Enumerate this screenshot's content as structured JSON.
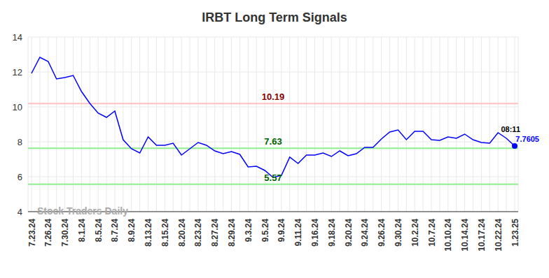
{
  "chart_data": {
    "type": "line",
    "title": "IRBT Long Term Signals",
    "categories": [
      "7.23.24",
      null,
      "7.26.24",
      null,
      "7.30.24",
      null,
      "8.1.24",
      null,
      "8.5.24",
      null,
      "8.7.24",
      null,
      "8.9.24",
      null,
      "8.13.24",
      null,
      "8.15.24",
      null,
      "8.20.24",
      null,
      "8.23.24",
      null,
      "8.27.24",
      null,
      "8.29.24",
      null,
      "9.3.24",
      null,
      "9.5.24",
      null,
      "9.9.24",
      null,
      "9.11.24",
      null,
      "9.16.24",
      null,
      "9.18.24",
      null,
      "9.20.24",
      null,
      "9.24.24",
      null,
      "9.26.24",
      null,
      "9.30.24",
      null,
      "10.2.24",
      null,
      "10.7.24",
      null,
      "10.10.24",
      null,
      "10.14.24",
      null,
      "10.17.24",
      null,
      "10.22.24",
      null,
      "1.23.25"
    ],
    "values": [
      11.92,
      12.84,
      12.6,
      11.6,
      11.68,
      11.8,
      10.88,
      10.2,
      9.64,
      9.4,
      9.76,
      8.12,
      7.6,
      7.36,
      8.28,
      7.8,
      7.8,
      7.92,
      7.24,
      7.6,
      7.96,
      7.8,
      7.48,
      7.32,
      7.44,
      7.28,
      6.56,
      6.6,
      6.36,
      5.96,
      6.08,
      7.12,
      6.76,
      7.24,
      7.24,
      7.36,
      7.16,
      7.48,
      7.2,
      7.32,
      7.68,
      7.68,
      8.16,
      8.56,
      8.68,
      8.12,
      8.6,
      8.6,
      8.12,
      8.08,
      8.28,
      8.2,
      8.44,
      8.12,
      7.96,
      7.92,
      8.52,
      8.2,
      7.7605
    ],
    "color": "#0000ff",
    "ylim": [
      4,
      14
    ],
    "yticks": [
      4,
      6,
      8,
      10,
      12,
      14
    ],
    "grid": true,
    "reference_lines": [
      {
        "value": 10.19,
        "color": "#ffc0c0",
        "label_color": "#8b0000"
      },
      {
        "value": 7.63,
        "color": "#90ee90",
        "label_color": "#006400"
      },
      {
        "value": 5.57,
        "color": "#90ee90",
        "label_color": "#006400"
      }
    ],
    "last_point_time": "08:11",
    "watermark": "Stock Traders Daily"
  }
}
